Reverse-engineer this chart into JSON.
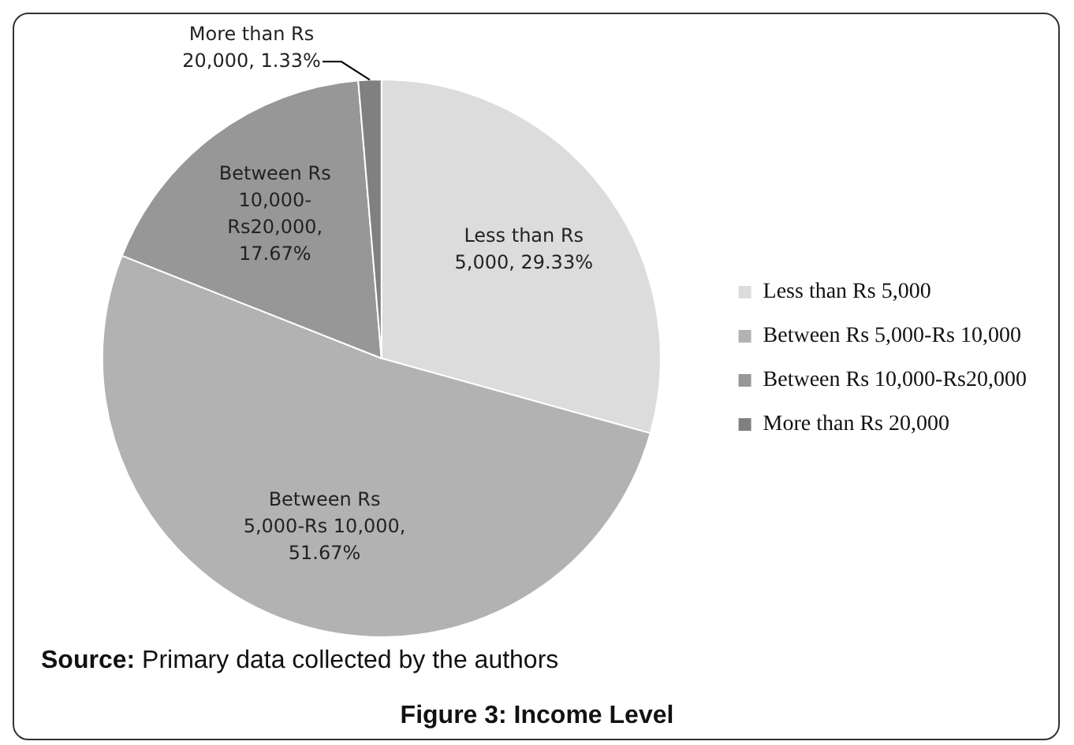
{
  "chart_data": {
    "type": "pie",
    "title": "Figure 3: Income Level",
    "categories": [
      "Less than Rs 5,000",
      "Between Rs 5,000-Rs 10,000",
      "Between Rs 10,000-Rs20,000",
      "More than Rs 20,000"
    ],
    "values": [
      29.33,
      51.67,
      17.67,
      1.33
    ],
    "colors": [
      "#dcdcdc",
      "#b2b2b2",
      "#979797",
      "#808080"
    ],
    "value_labels": [
      "Less than Rs 5,000, 29.33%",
      "Between Rs 5,000-Rs 10,000, 51.67%",
      "Between Rs 10,000- Rs20,000, 17.67%",
      "More than Rs 20,000, 1.33%"
    ],
    "legend": "right",
    "annotations": [
      "Source: Primary data collected by the authors"
    ]
  }
}
